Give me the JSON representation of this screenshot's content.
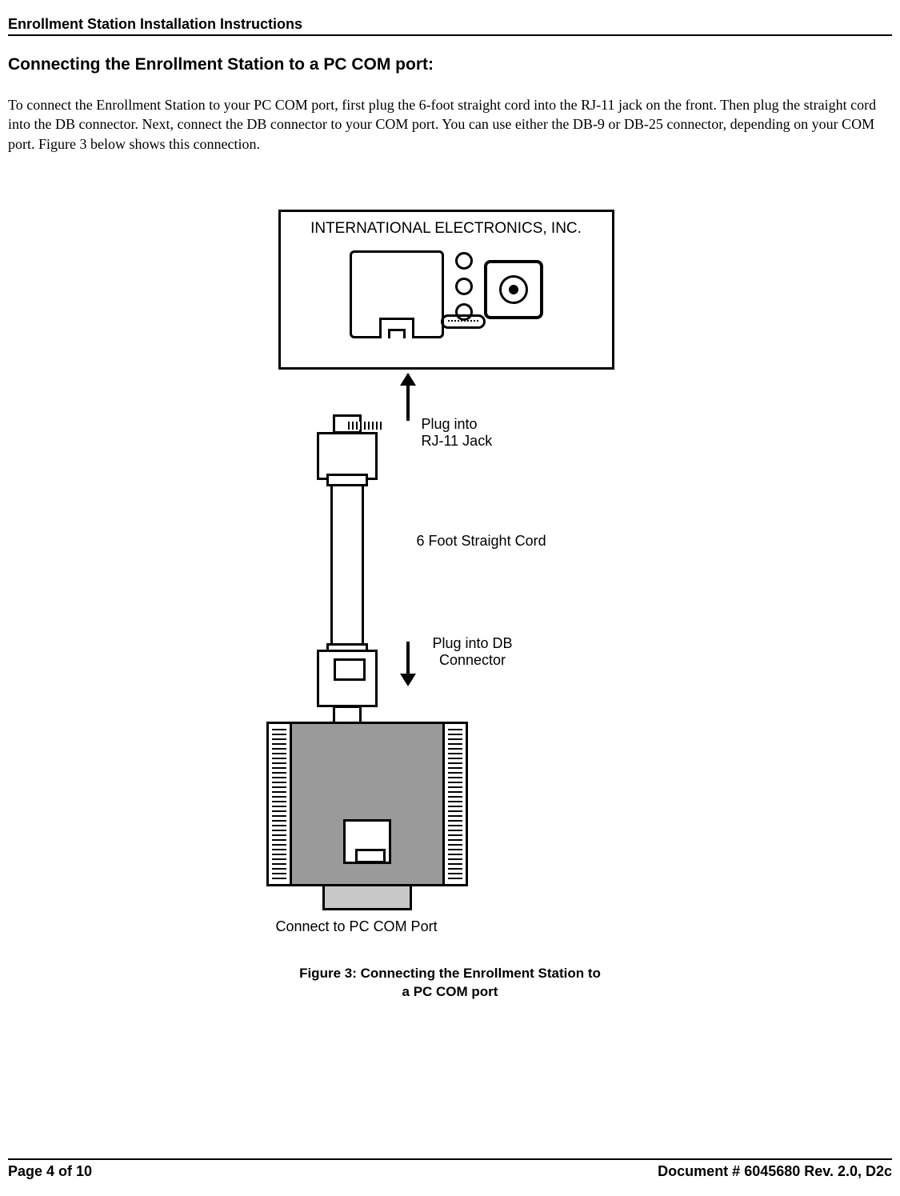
{
  "header": {
    "title": "Enrollment Station Installation Instructions"
  },
  "section": {
    "title": "Connecting the Enrollment Station to a PC COM port:"
  },
  "body": {
    "text": "To connect the Enrollment Station to your PC COM port, first plug the 6-foot straight cord into the RJ-11 jack on the front. Then plug the straight cord into the DB connector. Next, connect the DB connector to your COM port. You can use either the DB-9 or DB-25 connector, depending on your COM port. Figure 3 below shows this connection."
  },
  "diagram": {
    "device_label": "INTERNATIONAL ELECTRONICS, INC.",
    "label_rj11_line1": "Plug into",
    "label_rj11_line2": "RJ-11 Jack",
    "label_cord": "6 Foot Straight Cord",
    "label_db_line1": "Plug into DB",
    "label_db_line2": "Connector",
    "label_com": "Connect to PC COM Port",
    "caption_line1": "Figure 3: Connecting the Enrollment Station to",
    "caption_line2": "a PC COM port",
    "colors": {
      "stroke": "#000000",
      "db_body": "#9a9a9a",
      "db_bottom": "#c8c8c8",
      "background": "#ffffff"
    },
    "font": {
      "diagram_family": "Arial",
      "diagram_size_pt": 14,
      "caption_size_pt": 13,
      "caption_weight": "bold"
    }
  },
  "footer": {
    "left": "Page 4 of 10",
    "right": "Document # 6045680 Rev. 2.0, D2c"
  }
}
